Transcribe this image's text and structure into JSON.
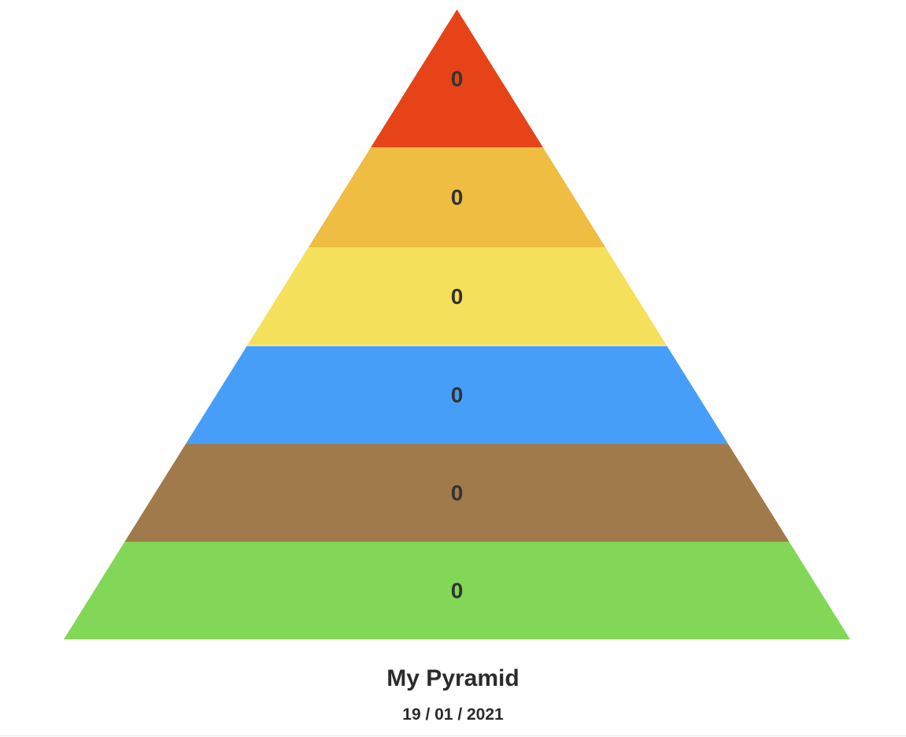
{
  "chart_data": {
    "type": "pyramid",
    "layers": [
      {
        "value": "0",
        "color": "#e64318"
      },
      {
        "value": "0",
        "color": "#eebd42"
      },
      {
        "value": "0",
        "color": "#f4e05a"
      },
      {
        "value": "0",
        "color": "#479ef8"
      },
      {
        "value": "0",
        "color": "#a17a4b"
      },
      {
        "value": "0",
        "color": "#83d756"
      }
    ]
  },
  "caption": {
    "title": "My Pyramid",
    "date": "19 / 01 / 2021"
  }
}
